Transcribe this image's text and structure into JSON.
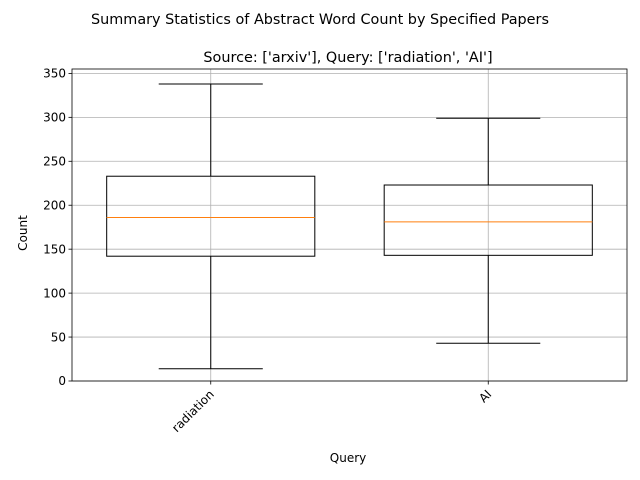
{
  "figure": {
    "suptitle": "Summary Statistics of Abstract Word Count by Specified Papers"
  },
  "chart_data": {
    "type": "box",
    "title": "Source: ['arxiv'], Query: ['radiation', 'AI']",
    "xlabel": "Query",
    "ylabel": "Count",
    "ylim": [
      0,
      355
    ],
    "yticks": [
      0,
      50,
      100,
      150,
      200,
      250,
      300,
      350
    ],
    "grid": true,
    "categories": [
      "radiation",
      "AI"
    ],
    "boxes": [
      {
        "label": "radiation",
        "whislo": 14,
        "q1": 142,
        "med": 186,
        "q3": 233,
        "whishi": 338
      },
      {
        "label": "AI",
        "whislo": 43,
        "q1": 143,
        "med": 181,
        "q3": 223,
        "whishi": 299
      }
    ],
    "colors": {
      "box": "#000000",
      "median": "#ff7f0e",
      "grid": "#b0b0b0"
    }
  }
}
